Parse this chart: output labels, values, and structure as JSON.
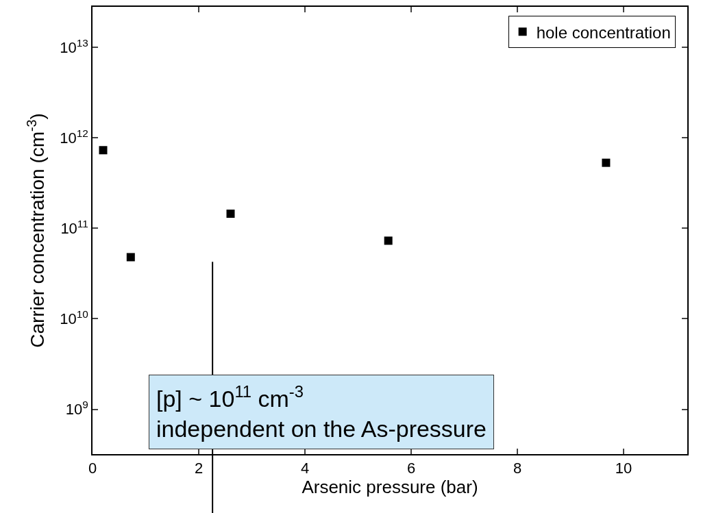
{
  "chart_data": {
    "type": "scatter",
    "xlabel": "Arsenic pressure (bar)",
    "ylabel": "Carrier concentration (cm$^{-3}$)",
    "x": [
      0.2,
      0.72,
      2.6,
      5.57,
      9.67
    ],
    "series": [
      {
        "name": "hole concentration",
        "color": "#000000",
        "values": [
          730000000000.0,
          48000000000.0,
          145000000000.0,
          73000000000.0,
          530000000000.0
        ]
      }
    ],
    "xlim": [
      0,
      11.2
    ],
    "xticks": [
      0,
      2,
      4,
      6,
      8,
      10
    ],
    "ylim": [
      320000000.0,
      28000000000000.0
    ],
    "yticks": [
      {
        "value": 1000000000.0,
        "label": "10$^{9}$"
      },
      {
        "value": 10000000000.0,
        "label": "10$^{10}$"
      },
      {
        "value": 100000000000.0,
        "label": "10$^{11}$"
      },
      {
        "value": 1000000000000.0,
        "label": "10$^{12}$"
      },
      {
        "value": 10000000000000.0,
        "label": "10$^{13}$"
      }
    ],
    "log": "y",
    "grid": false,
    "legend": "top right",
    "marker": "square",
    "ref_lines": [
      {
        "axis": "x",
        "value": 2.26,
        "color": "#000000"
      }
    ],
    "annotations": [
      "[p] ~ 10$^{11}$ cm$^{-3}$\nindependent on the As-pressure"
    ]
  }
}
